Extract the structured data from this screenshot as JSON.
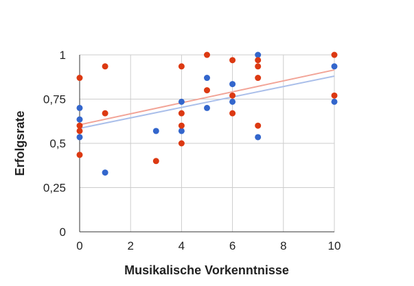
{
  "chart_data": {
    "type": "scatter",
    "title": "",
    "xlabel": "Musikalische Vorkenntnisse",
    "ylabel": "Erfolgsrate",
    "xlim": [
      0,
      10
    ],
    "ylim": [
      0,
      1
    ],
    "x_ticks": [
      0,
      2,
      4,
      6,
      8,
      10
    ],
    "x_tick_labels": [
      "0",
      "2",
      "4",
      "6",
      "8",
      "10"
    ],
    "y_ticks": [
      0,
      0.25,
      0.5,
      0.75,
      1
    ],
    "y_tick_labels": [
      "0",
      "0,25",
      "0,5",
      "0,75",
      "1"
    ],
    "grid": true,
    "legend": "none",
    "series": [
      {
        "color": "#3366cc",
        "trendline_color": "#aabfea",
        "trendline": [
          [
            0,
            0.585
          ],
          [
            10,
            0.88
          ]
        ],
        "points": [
          [
            0,
            0.7
          ],
          [
            0,
            0.635
          ],
          [
            0,
            0.535
          ],
          [
            1,
            0.335
          ],
          [
            3,
            0.57
          ],
          [
            4,
            0.735
          ],
          [
            4,
            0.57
          ],
          [
            5,
            0.87
          ],
          [
            5,
            0.7
          ],
          [
            6,
            0.835
          ],
          [
            6,
            0.735
          ],
          [
            7,
            1.0
          ],
          [
            7,
            0.535
          ],
          [
            10,
            0.935
          ],
          [
            10,
            0.735
          ]
        ]
      },
      {
        "color": "#dc3912",
        "trendline_color": "#f2a497",
        "trendline": [
          [
            0,
            0.605
          ],
          [
            10,
            0.915
          ]
        ],
        "points": [
          [
            0,
            0.87
          ],
          [
            0,
            0.6
          ],
          [
            0,
            0.57
          ],
          [
            0,
            0.435
          ],
          [
            1,
            0.935
          ],
          [
            1,
            0.67
          ],
          [
            3,
            0.4
          ],
          [
            4,
            0.935
          ],
          [
            4,
            0.67
          ],
          [
            4,
            0.6
          ],
          [
            4,
            0.5
          ],
          [
            5,
            1.0
          ],
          [
            5,
            0.8
          ],
          [
            6,
            0.97
          ],
          [
            6,
            0.77
          ],
          [
            6,
            0.67
          ],
          [
            7,
            0.97
          ],
          [
            7,
            0.935
          ],
          [
            7,
            0.87
          ],
          [
            7,
            0.6
          ],
          [
            10,
            1.0
          ],
          [
            10,
            0.77
          ]
        ]
      }
    ]
  }
}
